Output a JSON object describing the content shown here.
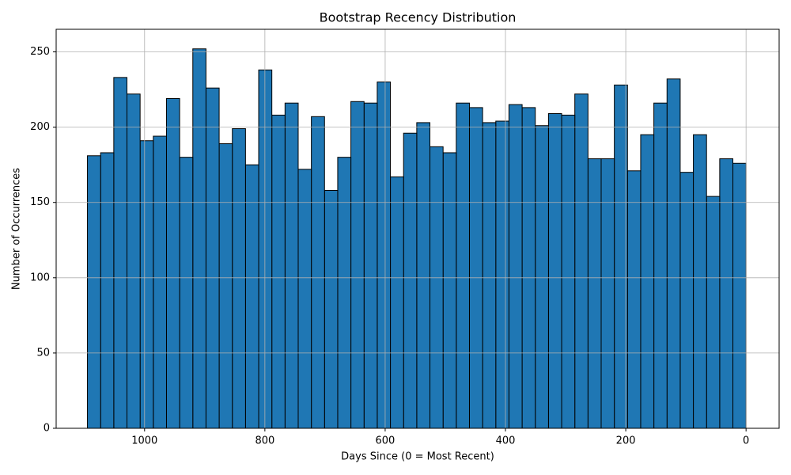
{
  "chart_data": {
    "type": "histogram",
    "title": "Bootstrap Recency Distribution",
    "x_label": "Days Since (0 = Most Recent)",
    "y_label": "Number of Occurrences",
    "bins": [
      0,
      21.9,
      43.8,
      65.7,
      87.6,
      109.5,
      131.4,
      153.3,
      175.2,
      197.1,
      219,
      240.9,
      262.8,
      284.7,
      306.6,
      328.5,
      350.4,
      372.3,
      394.2,
      416.1,
      438,
      459.9,
      481.8,
      503.7,
      525.6,
      547.5,
      569.4,
      591.3,
      613.2,
      635.1,
      657,
      678.9,
      700.8,
      722.7,
      744.6,
      766.5,
      788.4,
      810.3,
      832.2,
      854.1,
      876,
      897.9,
      919.8,
      941.7,
      963.6,
      985.5,
      1007.4,
      1029.3,
      1051.2,
      1073.1,
      1095
    ],
    "values": [
      176,
      179,
      154,
      195,
      170,
      232,
      216,
      195,
      171,
      228,
      179,
      179,
      222,
      208,
      209,
      201,
      213,
      215,
      204,
      203,
      213,
      216,
      183,
      187,
      203,
      196,
      167,
      230,
      216,
      217,
      180,
      158,
      207,
      172,
      216,
      208,
      238,
      175,
      199,
      189,
      226,
      252,
      180,
      219,
      194,
      191,
      222,
      233,
      183,
      181
    ],
    "color": "#1f77b4",
    "edgecolor": "#000000",
    "xlim": [
      1147,
      -55
    ],
    "xticks": [
      0,
      200,
      400,
      600,
      800,
      1000
    ],
    "ylim": [
      0,
      265
    ],
    "yticks": [
      0,
      50,
      100,
      150,
      200,
      250
    ],
    "grid": true
  }
}
